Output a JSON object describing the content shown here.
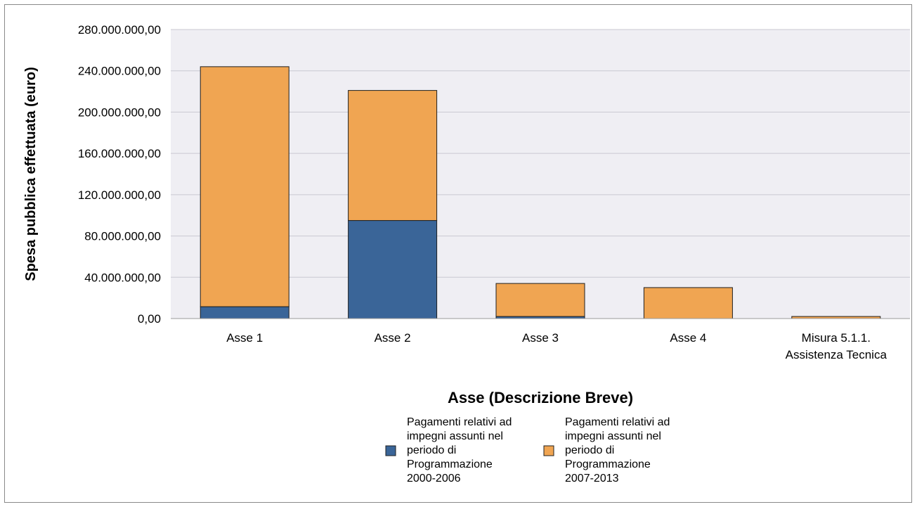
{
  "chart_data": {
    "type": "bar",
    "stacked": true,
    "title": "",
    "xlabel": "Asse (Descrizione Breve)",
    "ylabel": "Spesa pubblica effettuata (euro)",
    "ylim": [
      0,
      280000000
    ],
    "yticks": [
      0,
      40000000,
      80000000,
      120000000,
      160000000,
      200000000,
      240000000,
      280000000
    ],
    "ytick_labels": [
      "0,00",
      "40.000.000,00",
      "80.000.000,00",
      "120.000.000,00",
      "160.000.000,00",
      "200.000.000,00",
      "240.000.000,00",
      "280.000.000,00"
    ],
    "categories": [
      [
        "Asse 1"
      ],
      [
        "Asse 2"
      ],
      [
        "Asse 3"
      ],
      [
        "Asse 4"
      ],
      [
        "Misura 5.1.1.",
        "Assistenza Tecnica"
      ]
    ],
    "grid": true,
    "legend_position": "bottom-center",
    "series": [
      {
        "name": "Pagamenti relativi ad impegni assunti nel periodo di Programmazione 2000-2006",
        "legend_lines": [
          "Pagamenti relativi ad",
          "impegni assunti nel",
          "periodo di",
          "Programmazione",
          "2000-2006"
        ],
        "color": "#3a6598",
        "values": [
          11500000,
          95000000,
          2000000,
          0,
          0
        ]
      },
      {
        "name": "Pagamenti relativi ad impegni assunti nel periodo di Programmazione 2007-2013",
        "legend_lines": [
          "Pagamenti relativi ad",
          "impegni assunti nel",
          "periodo di",
          "Programmazione",
          "2007-2013"
        ],
        "color": "#f0a552",
        "values": [
          232500000,
          126000000,
          32000000,
          30000000,
          2000000
        ]
      }
    ],
    "plot_background": "#efeef3",
    "grid_color": "#c9c8d2"
  }
}
